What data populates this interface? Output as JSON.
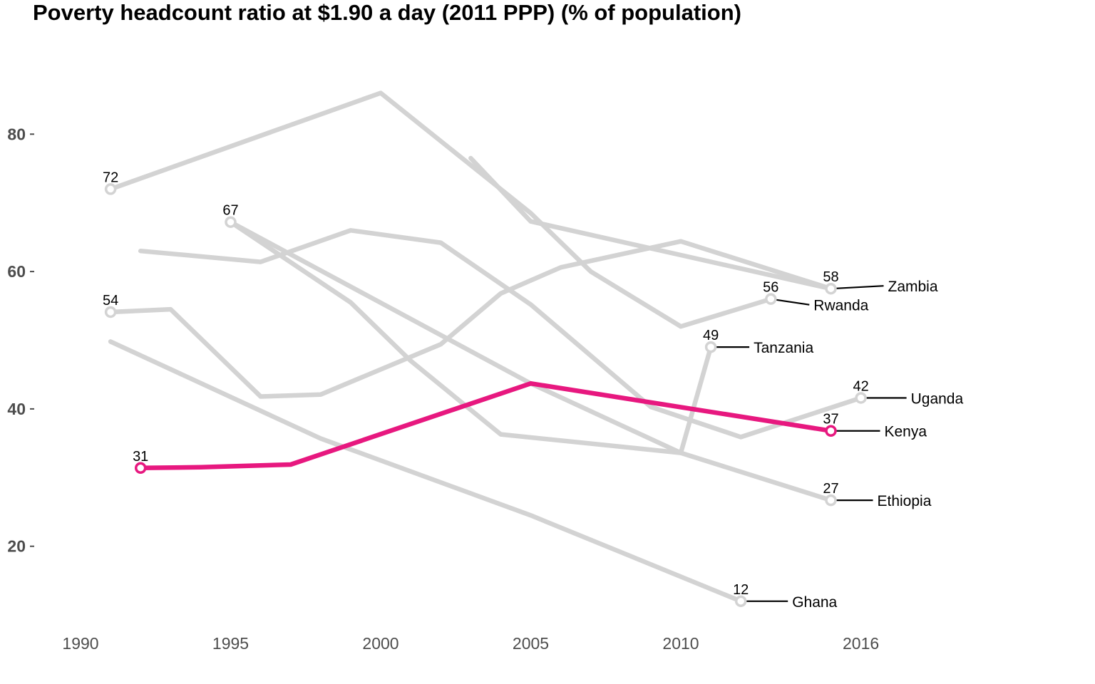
{
  "chart_data": {
    "type": "line",
    "title": "Poverty headcount ratio at $1.90 a day (2011 PPP) (% of population)",
    "xlabel": "",
    "ylabel": "",
    "xlim": [
      1990,
      2016
    ],
    "ylim": [
      10,
      90
    ],
    "x_ticks": [
      1990,
      1995,
      2000,
      2005,
      2010,
      2016
    ],
    "y_ticks": [
      20,
      40,
      60,
      80
    ],
    "grid": false,
    "legend": "direct labels at line ends",
    "highlight_color": "#e7187f",
    "muted_color": "#d3d3d3",
    "series": [
      {
        "name": "Zambia",
        "highlight": false,
        "end_label": "58",
        "points": [
          [
            2003,
            76.5
          ],
          [
            2005,
            67.3
          ],
          [
            2010,
            62.4
          ],
          [
            2015,
            57.5
          ]
        ]
      },
      {
        "name": "Rwanda",
        "highlight": false,
        "end_label": "56",
        "points": [
          [
            1991,
            72
          ],
          [
            2000,
            86
          ],
          [
            2005,
            68.5
          ],
          [
            2007,
            60
          ],
          [
            2010,
            52
          ],
          [
            2013,
            56
          ]
        ]
      },
      {
        "name": "Tanzania",
        "highlight": false,
        "end_label": "49",
        "points": [
          [
            1995,
            67.2
          ],
          [
            1999,
            55.5
          ],
          [
            2001,
            47
          ],
          [
            2004,
            36.3
          ],
          [
            2010,
            33.6
          ],
          [
            2011,
            49
          ]
        ]
      },
      {
        "name": "Uganda",
        "highlight": false,
        "end_label": "42",
        "points": [
          [
            1992,
            63
          ],
          [
            1996,
            61.4
          ],
          [
            1999,
            66
          ],
          [
            2002,
            64.2
          ],
          [
            2005,
            55.2
          ],
          [
            2009,
            40.3
          ],
          [
            2012,
            35.9
          ],
          [
            2016,
            41.6
          ]
        ]
      },
      {
        "name": "Kenya",
        "highlight": true,
        "end_label": "37",
        "start_label": "31",
        "points": [
          [
            1992,
            31.4
          ],
          [
            1994,
            31.5
          ],
          [
            1997,
            31.9
          ],
          [
            2005,
            43.7
          ],
          [
            2015,
            36.8
          ]
        ]
      },
      {
        "name": "Ethiopia",
        "highlight": false,
        "end_label": "27",
        "points": [
          [
            1995,
            67.2
          ],
          [
            2005,
            43.7
          ],
          [
            2010,
            33.6
          ],
          [
            2015,
            26.7
          ]
        ]
      },
      {
        "name": "Ghana",
        "highlight": false,
        "end_label": "12",
        "points": [
          [
            1991,
            49.8
          ],
          [
            1998,
            35.7
          ],
          [
            2005,
            24.5
          ],
          [
            2012,
            12.0
          ]
        ]
      }
    ],
    "start_labels": [
      {
        "x": 1991,
        "y": 72,
        "label": "72"
      },
      {
        "x": 1995,
        "y": 67.2,
        "label": "67"
      },
      {
        "x": 1991,
        "y": 54.1,
        "label": "54"
      }
    ],
    "extra_lines": [
      {
        "name": "Start-54 line",
        "points": [
          [
            1991,
            54.1
          ],
          [
            1993,
            54.5
          ],
          [
            1996,
            41.8
          ],
          [
            1998,
            42.1
          ],
          [
            2002,
            49.4
          ],
          [
            2004,
            56.8
          ],
          [
            2006,
            60.6
          ],
          [
            2010,
            64.4
          ],
          [
            2015,
            57.5
          ]
        ]
      }
    ]
  }
}
